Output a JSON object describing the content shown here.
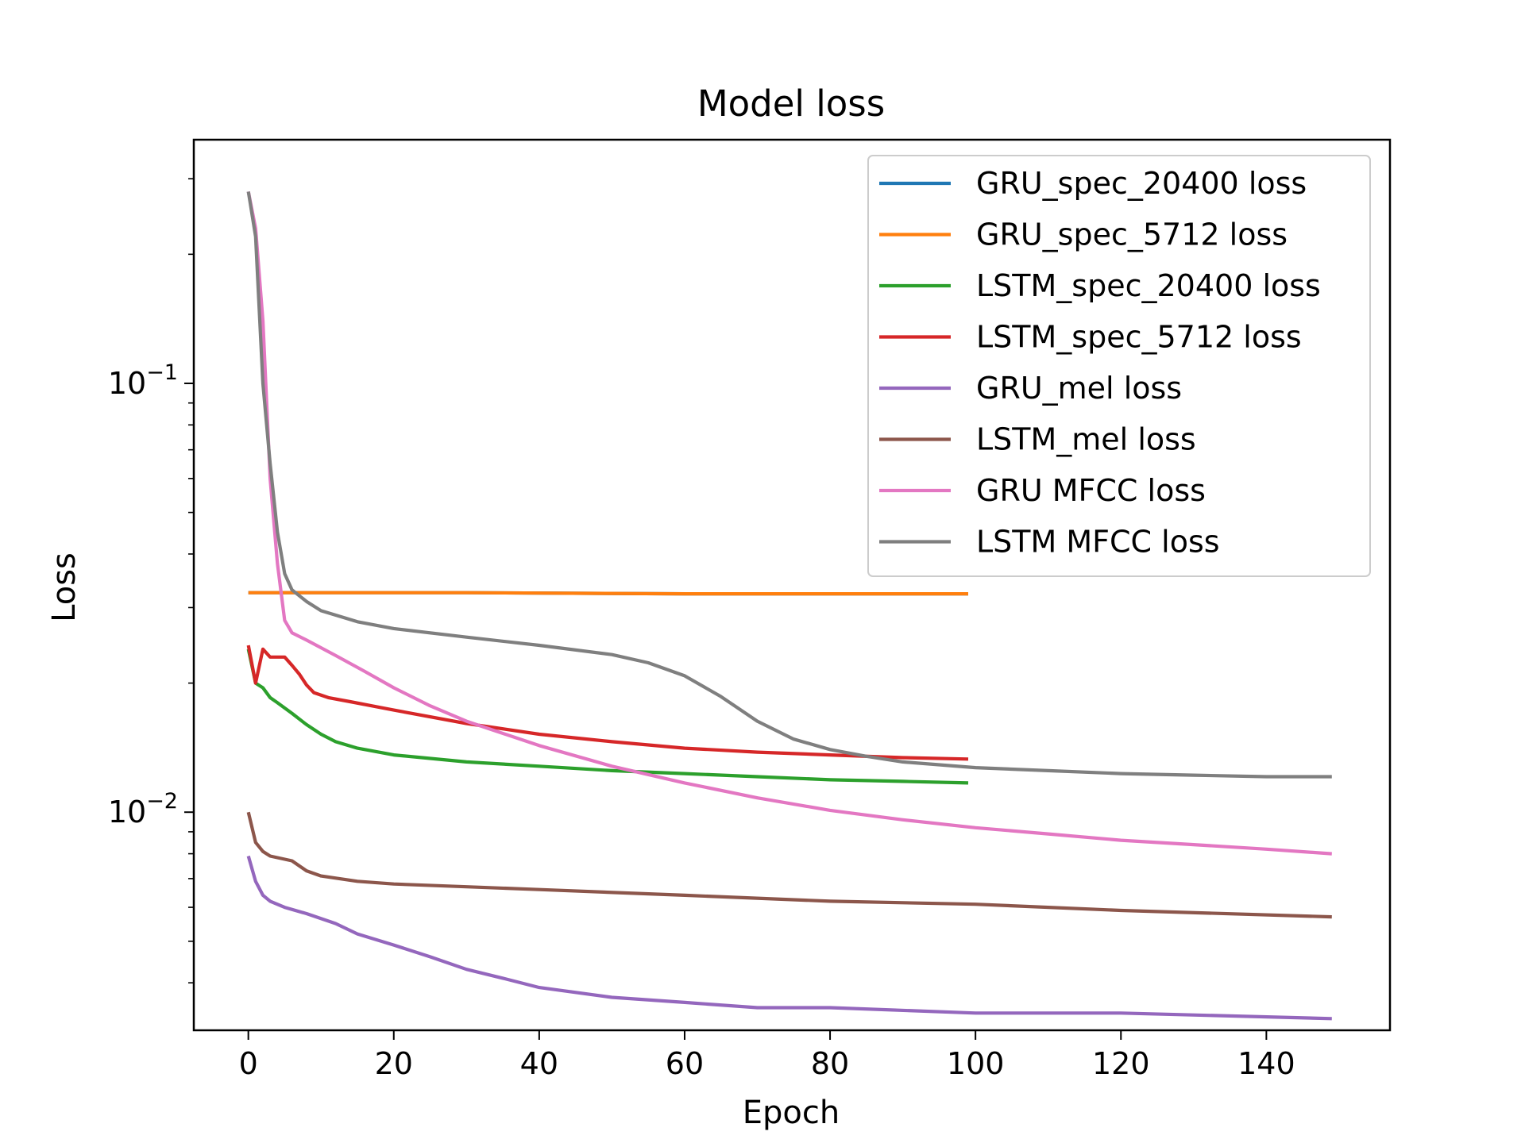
{
  "chart_data": {
    "type": "line",
    "title": "Model loss",
    "xlabel": "Epoch",
    "ylabel": "Loss",
    "yscale": "log",
    "xlim": [
      -7.5,
      157
    ],
    "ylim": [
      0.0031,
      0.37
    ],
    "xticks": [
      0,
      20,
      40,
      60,
      80,
      100,
      120,
      140
    ],
    "yticks": [
      {
        "value": 0.1,
        "base": "10",
        "exp": "−1"
      },
      {
        "value": 0.01,
        "base": "10",
        "exp": "−2"
      }
    ],
    "grid": false,
    "legend_position": "upper right",
    "series": [
      {
        "name": "GRU_spec_20400 loss",
        "color": "#1f77b4",
        "points": [
          [
            0,
            0.0325
          ],
          [
            30,
            0.0325
          ],
          [
            60,
            0.0323
          ],
          [
            99,
            0.0323
          ]
        ]
      },
      {
        "name": "GRU_spec_5712 loss",
        "color": "#ff7f0e",
        "points": [
          [
            0,
            0.0325
          ],
          [
            30,
            0.0325
          ],
          [
            60,
            0.0323
          ],
          [
            99,
            0.0323
          ]
        ]
      },
      {
        "name": "LSTM_spec_20400 loss",
        "color": "#2ca02c",
        "points": [
          [
            0,
            0.024
          ],
          [
            1,
            0.02
          ],
          [
            2,
            0.0195
          ],
          [
            3,
            0.0185
          ],
          [
            4,
            0.018
          ],
          [
            6,
            0.017
          ],
          [
            8,
            0.016
          ],
          [
            10,
            0.0152
          ],
          [
            12,
            0.0146
          ],
          [
            15,
            0.0141
          ],
          [
            20,
            0.0136
          ],
          [
            30,
            0.0131
          ],
          [
            40,
            0.0128
          ],
          [
            50,
            0.0125
          ],
          [
            60,
            0.0123
          ],
          [
            70,
            0.0121
          ],
          [
            80,
            0.0119
          ],
          [
            90,
            0.0118
          ],
          [
            99,
            0.0117
          ]
        ]
      },
      {
        "name": "LSTM_spec_5712 loss",
        "color": "#d62728",
        "points": [
          [
            0,
            0.0245
          ],
          [
            1,
            0.02
          ],
          [
            2,
            0.024
          ],
          [
            3,
            0.023
          ],
          [
            4,
            0.023
          ],
          [
            5,
            0.023
          ],
          [
            6,
            0.022
          ],
          [
            7,
            0.021
          ],
          [
            8,
            0.0198
          ],
          [
            9,
            0.019
          ],
          [
            11,
            0.0185
          ],
          [
            14,
            0.0181
          ],
          [
            20,
            0.0173
          ],
          [
            30,
            0.0161
          ],
          [
            40,
            0.0152
          ],
          [
            50,
            0.0146
          ],
          [
            60,
            0.0141
          ],
          [
            70,
            0.0138
          ],
          [
            80,
            0.0136
          ],
          [
            90,
            0.0134
          ],
          [
            99,
            0.0133
          ]
        ]
      },
      {
        "name": "GRU_mel loss",
        "color": "#9467bd",
        "points": [
          [
            0,
            0.0079
          ],
          [
            1,
            0.0069
          ],
          [
            2,
            0.0064
          ],
          [
            3,
            0.0062
          ],
          [
            5,
            0.006
          ],
          [
            8,
            0.0058
          ],
          [
            12,
            0.0055
          ],
          [
            15,
            0.0052
          ],
          [
            20,
            0.0049
          ],
          [
            25,
            0.0046
          ],
          [
            30,
            0.0043
          ],
          [
            35,
            0.0041
          ],
          [
            40,
            0.0039
          ],
          [
            50,
            0.0037
          ],
          [
            60,
            0.0036
          ],
          [
            70,
            0.0035
          ],
          [
            80,
            0.0035
          ],
          [
            100,
            0.0034
          ],
          [
            120,
            0.0034
          ],
          [
            149,
            0.0033
          ]
        ]
      },
      {
        "name": "LSTM_mel loss",
        "color": "#8c564b",
        "points": [
          [
            0,
            0.01
          ],
          [
            1,
            0.0085
          ],
          [
            2,
            0.0081
          ],
          [
            3,
            0.0079
          ],
          [
            6,
            0.0077
          ],
          [
            8,
            0.0073
          ],
          [
            10,
            0.0071
          ],
          [
            15,
            0.0069
          ],
          [
            20,
            0.0068
          ],
          [
            30,
            0.0067
          ],
          [
            40,
            0.0066
          ],
          [
            60,
            0.0064
          ],
          [
            80,
            0.0062
          ],
          [
            100,
            0.0061
          ],
          [
            120,
            0.0059
          ],
          [
            149,
            0.0057
          ]
        ]
      },
      {
        "name": "GRU MFCC loss",
        "color": "#e377c2",
        "points": [
          [
            0,
            0.28
          ],
          [
            1,
            0.23
          ],
          [
            2,
            0.14
          ],
          [
            3,
            0.06
          ],
          [
            4,
            0.038
          ],
          [
            5,
            0.028
          ],
          [
            6,
            0.0262
          ],
          [
            8,
            0.0252
          ],
          [
            12,
            0.0232
          ],
          [
            16,
            0.0213
          ],
          [
            20,
            0.0195
          ],
          [
            25,
            0.0177
          ],
          [
            30,
            0.0163
          ],
          [
            40,
            0.0143
          ],
          [
            50,
            0.0128
          ],
          [
            60,
            0.0117
          ],
          [
            70,
            0.0108
          ],
          [
            80,
            0.0101
          ],
          [
            90,
            0.0096
          ],
          [
            100,
            0.0092
          ],
          [
            110,
            0.0089
          ],
          [
            120,
            0.0086
          ],
          [
            130,
            0.0084
          ],
          [
            140,
            0.0082
          ],
          [
            149,
            0.008
          ]
        ]
      },
      {
        "name": "LSTM MFCC loss",
        "color": "#7f7f7f",
        "points": [
          [
            0,
            0.28
          ],
          [
            1,
            0.22
          ],
          [
            2,
            0.1
          ],
          [
            3,
            0.065
          ],
          [
            4,
            0.045
          ],
          [
            5,
            0.036
          ],
          [
            6,
            0.033
          ],
          [
            8,
            0.031
          ],
          [
            10,
            0.0295
          ],
          [
            15,
            0.0278
          ],
          [
            20,
            0.0268
          ],
          [
            30,
            0.0256
          ],
          [
            40,
            0.0245
          ],
          [
            50,
            0.0233
          ],
          [
            55,
            0.0223
          ],
          [
            60,
            0.0208
          ],
          [
            65,
            0.0186
          ],
          [
            70,
            0.0163
          ],
          [
            75,
            0.0148
          ],
          [
            80,
            0.014
          ],
          [
            85,
            0.0135
          ],
          [
            90,
            0.0131
          ],
          [
            100,
            0.0127
          ],
          [
            110,
            0.0125
          ],
          [
            120,
            0.0123
          ],
          [
            130,
            0.0122
          ],
          [
            140,
            0.0121
          ],
          [
            149,
            0.0121
          ]
        ]
      }
    ]
  }
}
